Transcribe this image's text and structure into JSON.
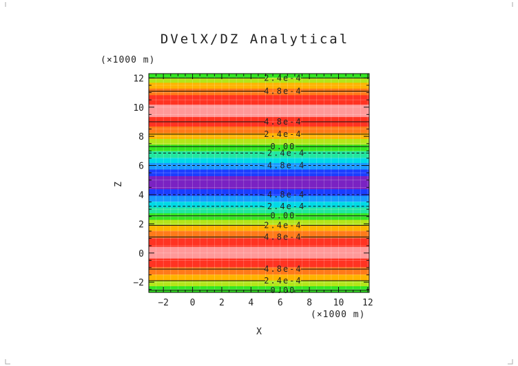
{
  "chart_data": {
    "type": "heatmap",
    "title": "DVelX/DZ Analytical",
    "xlabel": "X",
    "ylabel": "Z",
    "x_unit_label": "(×1000 m)",
    "y_unit_label": "(×1000 m)",
    "xlim": [
      -3,
      12.1
    ],
    "ylim": [
      -2.7,
      12.3
    ],
    "x_ticks": [
      -2,
      0,
      2,
      4,
      6,
      8,
      10,
      12
    ],
    "y_ticks": [
      -2,
      0,
      2,
      4,
      6,
      8,
      10,
      12
    ],
    "x_tick_labels": [
      "−2",
      "0",
      "2",
      "4",
      "6",
      "8",
      "10",
      "12"
    ],
    "y_tick_labels": [
      "−2",
      "0",
      "2",
      "4",
      "6",
      "8",
      "10",
      "12"
    ],
    "bands": [
      {
        "z0": -2.7,
        "z1": -2.25,
        "color": "#33e622"
      },
      {
        "z0": -2.25,
        "z1": -1.85,
        "color": "#b3e61a"
      },
      {
        "z0": -1.85,
        "z1": -1.45,
        "color": "#ffb300"
      },
      {
        "z0": -1.45,
        "z1": -0.95,
        "color": "#ff7a1a"
      },
      {
        "z0": -0.95,
        "z1": -0.35,
        "color": "#ff3322"
      },
      {
        "z0": -0.35,
        "z1": 0.45,
        "color": "#ff9999"
      },
      {
        "z0": 0.45,
        "z1": 1.05,
        "color": "#ff3322"
      },
      {
        "z0": 1.05,
        "z1": 1.55,
        "color": "#ff7a1a"
      },
      {
        "z0": 1.55,
        "z1": 1.95,
        "color": "#ffb300"
      },
      {
        "z0": 1.95,
        "z1": 2.3,
        "color": "#b3e61a"
      },
      {
        "z0": 2.3,
        "z1": 2.75,
        "color": "#33e622"
      },
      {
        "z0": 2.75,
        "z1": 3.15,
        "color": "#22e6a0"
      },
      {
        "z0": 3.15,
        "z1": 3.55,
        "color": "#00d9e6"
      },
      {
        "z0": 3.55,
        "z1": 3.95,
        "color": "#1a99ff"
      },
      {
        "z0": 3.95,
        "z1": 4.4,
        "color": "#1a3dff"
      },
      {
        "z0": 4.4,
        "z1": 5.3,
        "color": "#7a22c2"
      },
      {
        "z0": 5.3,
        "z1": 5.75,
        "color": "#1a3dff"
      },
      {
        "z0": 5.75,
        "z1": 6.2,
        "color": "#1a99ff"
      },
      {
        "z0": 6.2,
        "z1": 6.55,
        "color": "#00d9e6"
      },
      {
        "z0": 6.55,
        "z1": 7.0,
        "color": "#22e6a0"
      },
      {
        "z0": 7.0,
        "z1": 7.45,
        "color": "#33e622"
      },
      {
        "z0": 7.45,
        "z1": 7.85,
        "color": "#b3e61a"
      },
      {
        "z0": 7.85,
        "z1": 8.25,
        "color": "#ffb300"
      },
      {
        "z0": 8.25,
        "z1": 8.7,
        "color": "#ff7a1a"
      },
      {
        "z0": 8.7,
        "z1": 9.35,
        "color": "#ff3322"
      },
      {
        "z0": 9.35,
        "z1": 10.2,
        "color": "#ff9999"
      },
      {
        "z0": 10.2,
        "z1": 10.85,
        "color": "#ff3322"
      },
      {
        "z0": 10.85,
        "z1": 11.3,
        "color": "#ff7a1a"
      },
      {
        "z0": 11.3,
        "z1": 11.7,
        "color": "#ffb300"
      },
      {
        "z0": 11.7,
        "z1": 12.05,
        "color": "#b3e61a"
      },
      {
        "z0": 12.05,
        "z1": 12.3,
        "color": "#33e622"
      }
    ],
    "contour_labels": [
      {
        "z": 12.0,
        "text": "2.4e-4"
      },
      {
        "z": 11.1,
        "text": "4.8e-4"
      },
      {
        "z": 9.0,
        "text": "4.8e-4"
      },
      {
        "z": 8.15,
        "text": "2.4e-4"
      },
      {
        "z": 7.3,
        "text": "0.00"
      },
      {
        "z": 6.85,
        "text": "-2.4e-4"
      },
      {
        "z": 6.0,
        "text": "-4.8e-4"
      },
      {
        "z": 4.0,
        "text": "-4.8e-4"
      },
      {
        "z": 3.2,
        "text": "-2.4e-4"
      },
      {
        "z": 2.55,
        "text": "0.00"
      },
      {
        "z": 1.9,
        "text": "2.4e-4"
      },
      {
        "z": 1.1,
        "text": "4.8e-4"
      },
      {
        "z": -1.1,
        "text": "4.8e-4"
      },
      {
        "z": -1.9,
        "text": "2.4e-4"
      },
      {
        "z": -2.55,
        "text": "0.00"
      }
    ],
    "grid": true
  }
}
